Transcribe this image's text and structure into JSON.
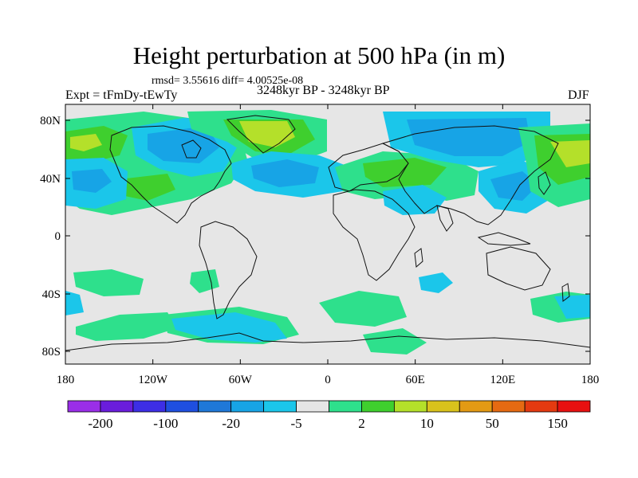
{
  "title": "Height perturbation at 500 hPa (in m)",
  "stats": "rmsd= 3.55616 diff= 4.00525e-08",
  "experiment": "Expt = tFmDy-tEwTy",
  "period": "3248kyr BP - 3248kyr BP",
  "season": "DJF",
  "axes": {
    "lon_ticks": [
      "180",
      "120W",
      "60W",
      "0",
      "60E",
      "120E",
      "180"
    ],
    "lat_ticks": [
      "80N",
      "40N",
      "0",
      "40S",
      "80S"
    ]
  },
  "colorbar": {
    "colors": [
      "#9a2ee8",
      "#6a1ddc",
      "#3d2ee6",
      "#1f4fe0",
      "#1f78d8",
      "#17a4e6",
      "#1bc6ea",
      "#e6e6e6",
      "#2ee08c",
      "#3fcf2e",
      "#b4e02a",
      "#d9c21c",
      "#e39a14",
      "#e66a12",
      "#e43a10",
      "#e81010"
    ],
    "labels": [
      "-200",
      "-100",
      "-20",
      "-5",
      "2",
      "10",
      "50",
      "150"
    ]
  },
  "field_colors": {
    "background": "#e6e6e6",
    "blue_light": "#1bc6ea",
    "blue_mid": "#17a4e6",
    "blue_dark": "#1f78d8",
    "green": "#2ee08c",
    "green_bright": "#3fcf2e",
    "yellow_green": "#b4e02a",
    "coast": "#111111"
  }
}
